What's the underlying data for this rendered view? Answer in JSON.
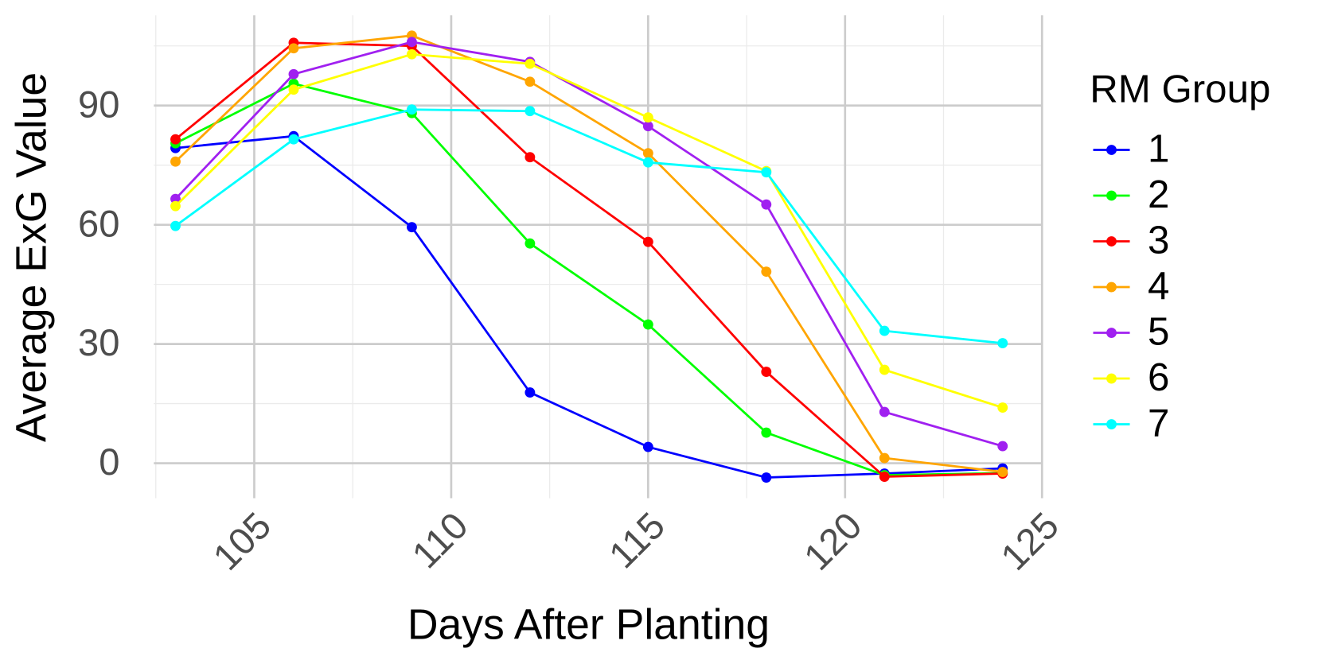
{
  "chart_data": {
    "type": "line",
    "x_label": "Days After Planting",
    "y_label": "Average ExG Value",
    "legend_title": "RM Group",
    "legend_position": "right",
    "grid": true,
    "minor_grid": true,
    "x": [
      103,
      106,
      109,
      112,
      115,
      118,
      121,
      124
    ],
    "xlim": [
      102.45,
      125
    ],
    "xticks": [
      105,
      110,
      115,
      120,
      125
    ],
    "ylim": [
      -8.8,
      112.7
    ],
    "yticks": [
      0,
      30,
      60,
      90
    ],
    "series": [
      {
        "name": "1",
        "color": "#0000ff",
        "values": [
          79.3,
          82.3,
          59.4,
          17.8,
          4.1,
          -3.6,
          -2.6,
          -1.3
        ]
      },
      {
        "name": "2",
        "color": "#00ff00",
        "values": [
          80.5,
          95.5,
          88.1,
          55.3,
          34.9,
          7.7,
          -3.0,
          -2.5
        ]
      },
      {
        "name": "3",
        "color": "#ff0000",
        "values": [
          81.5,
          105.8,
          105.0,
          77.0,
          55.7,
          23.0,
          -3.4,
          -2.6
        ]
      },
      {
        "name": "4",
        "color": "#ffa500",
        "values": [
          75.9,
          104.4,
          107.6,
          96.0,
          78.0,
          48.2,
          1.3,
          -2.2
        ]
      },
      {
        "name": "5",
        "color": "#a020f0",
        "values": [
          66.5,
          97.9,
          106.0,
          101.0,
          84.8,
          65.1,
          12.9,
          4.3
        ]
      },
      {
        "name": "6",
        "color": "#ffff00",
        "values": [
          64.7,
          94.0,
          102.9,
          100.5,
          87.0,
          73.5,
          23.5,
          14.0
        ]
      },
      {
        "name": "7",
        "color": "#00ffff",
        "values": [
          59.7,
          81.5,
          89.0,
          88.6,
          75.7,
          73.2,
          33.3,
          30.2
        ]
      }
    ]
  }
}
